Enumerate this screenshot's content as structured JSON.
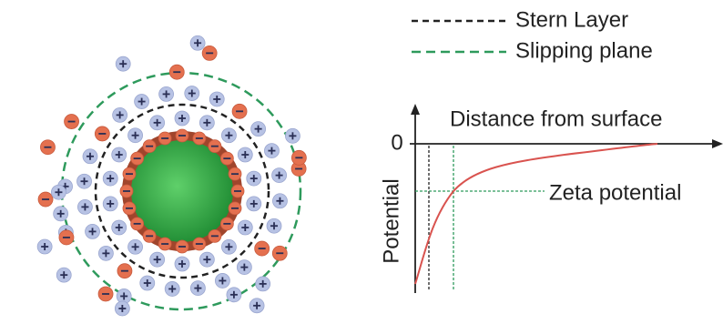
{
  "legend": {
    "items": [
      {
        "label": "Stern Layer"
      },
      {
        "label": "Slipping plane"
      }
    ]
  },
  "plot": {
    "origin_label": "0",
    "x_axis_label": "Distance from surface",
    "y_axis_label": "Potential",
    "annotation": "Zeta potential"
  }
}
